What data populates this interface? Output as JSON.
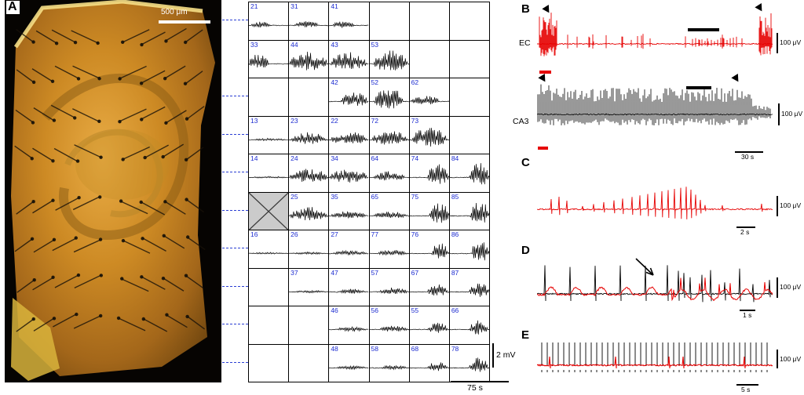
{
  "panelA": {
    "label": "A",
    "scalebar": "500 μm"
  },
  "grid": {
    "scale_v": "2 mV",
    "scale_h": "75 s",
    "rows": [
      [
        {
          "id": "21",
          "a": 5,
          "s": 0.05,
          "e": 0.55
        },
        {
          "id": "31",
          "a": 6,
          "s": 0.15,
          "e": 0.75
        },
        {
          "id": "41",
          "a": 6,
          "s": 0.1,
          "e": 0.65
        },
        null,
        null,
        null
      ],
      [
        {
          "id": "33",
          "a": 13,
          "s": 0.0,
          "e": 0.5
        },
        {
          "id": "44",
          "a": 16,
          "s": 0.02,
          "e": 0.98
        },
        {
          "id": "43",
          "a": 16,
          "s": 0.05,
          "e": 0.95
        },
        {
          "id": "53",
          "a": 18,
          "s": 0.08,
          "e": 0.95
        },
        null,
        null
      ],
      [
        null,
        null,
        {
          "id": "42",
          "a": 12,
          "s": 0.3,
          "e": 0.98
        },
        {
          "id": "52",
          "a": 18,
          "s": 0.12,
          "e": 0.85
        },
        {
          "id": "62",
          "a": 8,
          "s": 0.02,
          "e": 0.75
        },
        null
      ],
      [
        {
          "id": "13",
          "a": 2,
          "s": 0.05,
          "e": 0.95
        },
        {
          "id": "23",
          "a": 10,
          "s": 0.05,
          "e": 0.95
        },
        {
          "id": "22",
          "a": 11,
          "s": 0.05,
          "e": 0.95
        },
        {
          "id": "72",
          "a": 12,
          "s": 0.05,
          "e": 0.95
        },
        {
          "id": "73",
          "a": 16,
          "s": 0.05,
          "e": 0.95
        },
        null
      ],
      [
        {
          "id": "14",
          "a": 1.5,
          "s": 0.02,
          "e": 0.98
        },
        {
          "id": "24",
          "a": 12,
          "s": 0.02,
          "e": 0.98
        },
        {
          "id": "34",
          "a": 12,
          "s": 0.02,
          "e": 0.98
        },
        {
          "id": "64",
          "a": 8,
          "s": 0.1,
          "e": 0.9
        },
        {
          "id": "74",
          "a": 18,
          "s": 0.45,
          "e": 0.99
        },
        {
          "id": "84",
          "a": 20,
          "s": 0.5,
          "e": 0.99
        }
      ],
      [
        {
          "x": true
        },
        {
          "id": "25",
          "a": 12,
          "s": 0.02,
          "e": 0.98
        },
        {
          "id": "35",
          "a": 6,
          "s": 0.05,
          "e": 0.95
        },
        {
          "id": "65",
          "a": 6,
          "s": 0.1,
          "e": 0.95
        },
        {
          "id": "75",
          "a": 18,
          "s": 0.5,
          "e": 0.99
        },
        {
          "id": "85",
          "a": 20,
          "s": 0.52,
          "e": 0.99
        }
      ],
      [
        {
          "id": "16",
          "a": 1.5,
          "s": 0.02,
          "e": 0.98
        },
        {
          "id": "26",
          "a": 2,
          "s": 0.05,
          "e": 0.95
        },
        {
          "id": "27",
          "a": 4,
          "s": 0.1,
          "e": 0.95
        },
        {
          "id": "77",
          "a": 5,
          "s": 0.2,
          "e": 0.95
        },
        {
          "id": "76",
          "a": 14,
          "s": 0.55,
          "e": 0.99
        },
        {
          "id": "86",
          "a": 20,
          "s": 0.55,
          "e": 0.99
        }
      ],
      [
        null,
        {
          "id": "37",
          "a": 2,
          "s": 0.15,
          "e": 0.95
        },
        {
          "id": "47",
          "a": 4,
          "s": 0.2,
          "e": 0.95
        },
        {
          "id": "57",
          "a": 6,
          "s": 0.25,
          "e": 0.95
        },
        {
          "id": "67",
          "a": 10,
          "s": 0.45,
          "e": 0.97
        },
        {
          "id": "87",
          "a": 12,
          "s": 0.5,
          "e": 0.99
        }
      ],
      [
        null,
        null,
        {
          "id": "46",
          "a": 4,
          "s": 0.2,
          "e": 0.95
        },
        {
          "id": "56",
          "a": 5,
          "s": 0.25,
          "e": 0.95
        },
        {
          "id": "55",
          "a": 9,
          "s": 0.45,
          "e": 0.97
        },
        {
          "id": "66",
          "a": 12,
          "s": 0.5,
          "e": 0.97
        }
      ],
      [
        null,
        null,
        {
          "id": "48",
          "a": 3,
          "s": 0.2,
          "e": 0.95
        },
        {
          "id": "58",
          "a": 4,
          "s": 0.3,
          "e": 0.95
        },
        {
          "id": "68",
          "a": 8,
          "s": 0.45,
          "e": 0.95
        },
        {
          "id": "78",
          "a": 14,
          "s": 0.5,
          "e": 0.97
        }
      ]
    ]
  },
  "panelB": {
    "label": "B",
    "ec_label": "EC",
    "ca3_label": "CA3",
    "ec_scale": "100 μV",
    "ca3_scale": "100 μV",
    "time_scale": "30 s"
  },
  "panelC": {
    "label": "C",
    "v_scale": "100 μV",
    "time_scale": "2 s"
  },
  "panelD": {
    "label": "D",
    "v_scale": "100 μV",
    "time_scale": "1 s"
  },
  "panelE": {
    "label": "E",
    "v_scale": "100 μV",
    "time_scale": "5 s"
  },
  "colors": {
    "red": "#e60000",
    "channel_blue": "#1c2bd0"
  }
}
